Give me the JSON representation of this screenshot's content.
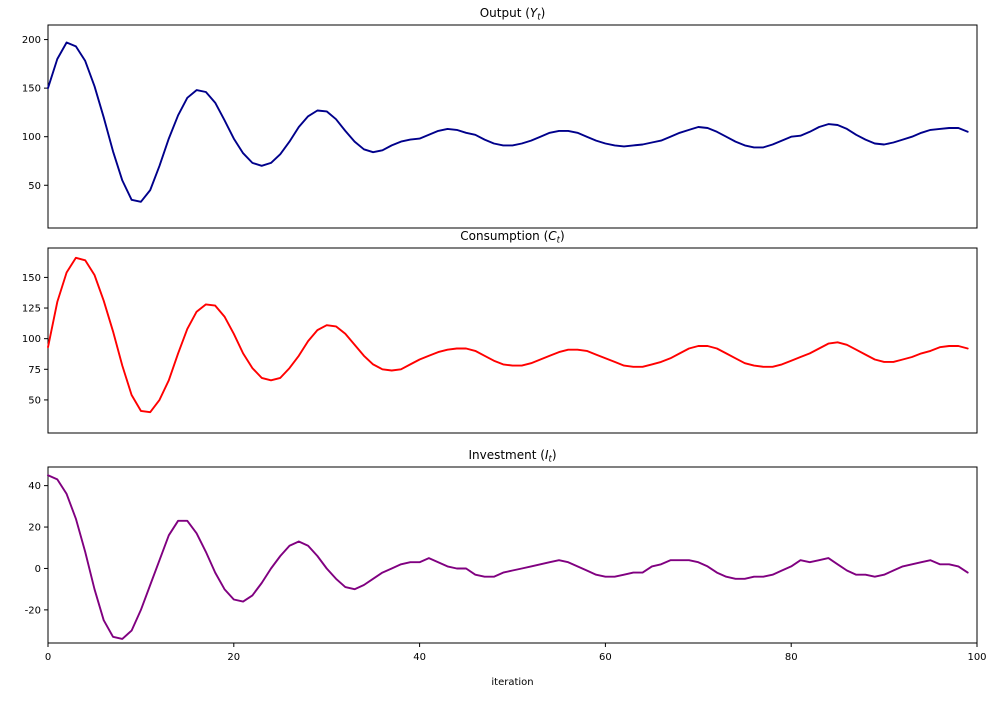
{
  "figure": {
    "background": "#ffffff",
    "xlabel": "iteration",
    "n_points": 100
  },
  "chart_data": [
    {
      "type": "line",
      "title_text": "Output (Y_t)",
      "title_parts": [
        {
          "t": "Output ("
        },
        {
          "t": "Y",
          "style": "italic"
        },
        {
          "t": "t",
          "style": "italic",
          "sub": true
        },
        {
          "t": ")"
        }
      ],
      "series_name": "Output",
      "color": "#00008B",
      "xlim": [
        0,
        100
      ],
      "ylim": [
        6,
        215
      ],
      "yticks": [
        50,
        100,
        150,
        200
      ],
      "xticks": [
        0,
        20,
        40,
        60,
        80,
        100
      ],
      "show_xticks": false,
      "grid": false,
      "x_start": 0,
      "x_step": 1,
      "values": [
        150,
        180,
        197,
        193,
        178,
        152,
        120,
        85,
        55,
        35,
        33,
        45,
        70,
        98,
        122,
        140,
        148,
        146,
        135,
        117,
        98,
        83,
        73,
        70,
        73,
        82,
        95,
        110,
        121,
        127,
        126,
        118,
        106,
        95,
        87,
        84,
        86,
        91,
        95,
        97,
        98,
        102,
        106,
        108,
        107,
        104,
        102,
        97,
        93,
        91,
        91,
        93,
        96,
        100,
        104,
        106,
        106,
        104,
        100,
        96,
        93,
        91,
        90,
        91,
        92,
        94,
        96,
        100,
        104,
        107,
        110,
        109,
        105,
        100,
        95,
        91,
        89,
        89,
        92,
        96,
        100,
        101,
        105,
        110,
        113,
        112,
        108,
        102,
        97,
        93,
        92,
        94,
        97,
        100,
        104,
        107,
        108,
        109,
        109,
        105
      ]
    },
    {
      "type": "line",
      "title_text": "Consumption (C_t)",
      "title_parts": [
        {
          "t": "Consumption ("
        },
        {
          "t": "C",
          "style": "italic"
        },
        {
          "t": "t",
          "style": "italic",
          "sub": true
        },
        {
          "t": ")"
        }
      ],
      "series_name": "Consumption",
      "color": "#FF0000",
      "xlim": [
        0,
        100
      ],
      "ylim": [
        23,
        174
      ],
      "yticks": [
        50,
        75,
        100,
        125,
        150
      ],
      "xticks": [
        0,
        20,
        40,
        60,
        80,
        100
      ],
      "show_xticks": false,
      "grid": false,
      "x_start": 0,
      "x_step": 1,
      "values": [
        93,
        130,
        154,
        166,
        164,
        152,
        131,
        106,
        78,
        54,
        41,
        40,
        50,
        66,
        88,
        108,
        122,
        128,
        127,
        118,
        104,
        88,
        76,
        68,
        66,
        68,
        76,
        86,
        98,
        107,
        111,
        110,
        104,
        95,
        86,
        79,
        75,
        74,
        75,
        79,
        83,
        86,
        89,
        91,
        92,
        92,
        90,
        86,
        82,
        79,
        78,
        78,
        80,
        83,
        86,
        89,
        91,
        91,
        90,
        87,
        84,
        81,
        78,
        77,
        77,
        79,
        81,
        84,
        88,
        92,
        94,
        94,
        92,
        88,
        84,
        80,
        78,
        77,
        77,
        79,
        82,
        85,
        88,
        92,
        96,
        97,
        95,
        91,
        87,
        83,
        81,
        81,
        83,
        85,
        88,
        90,
        93,
        94,
        94,
        92
      ]
    },
    {
      "type": "line",
      "title_text": "Investment (I_t)",
      "title_parts": [
        {
          "t": "Investment ("
        },
        {
          "t": "I",
          "style": "italic"
        },
        {
          "t": "t",
          "style": "italic",
          "sub": true
        },
        {
          "t": ")"
        }
      ],
      "series_name": "Investment",
      "color": "#800080",
      "xlim": [
        0,
        100
      ],
      "ylim": [
        -36,
        49
      ],
      "yticks": [
        -20,
        0,
        20,
        40
      ],
      "xticks": [
        0,
        20,
        40,
        60,
        80,
        100
      ],
      "show_xticks": true,
      "xlabel": "iteration",
      "grid": false,
      "x_start": 0,
      "x_step": 1,
      "values": [
        45,
        43,
        36,
        24,
        8,
        -10,
        -25,
        -33,
        -34,
        -30,
        -20,
        -8,
        4,
        16,
        23,
        23,
        17,
        8,
        -2,
        -10,
        -15,
        -16,
        -13,
        -7,
        0,
        6,
        11,
        13,
        11,
        6,
        0,
        -5,
        -9,
        -10,
        -8,
        -5,
        -2,
        0,
        2,
        3,
        3,
        5,
        3,
        1,
        0,
        0,
        -3,
        -4,
        -4,
        -2,
        -1,
        0,
        1,
        2,
        3,
        4,
        3,
        1,
        -1,
        -3,
        -4,
        -4,
        -3,
        -2,
        -2,
        1,
        2,
        4,
        4,
        4,
        3,
        1,
        -2,
        -4,
        -5,
        -5,
        -4,
        -4,
        -3,
        -1,
        1,
        4,
        3,
        4,
        5,
        2,
        -1,
        -3,
        -3,
        -4,
        -3,
        -1,
        1,
        2,
        3,
        4,
        2,
        2,
        1,
        -2
      ]
    }
  ]
}
